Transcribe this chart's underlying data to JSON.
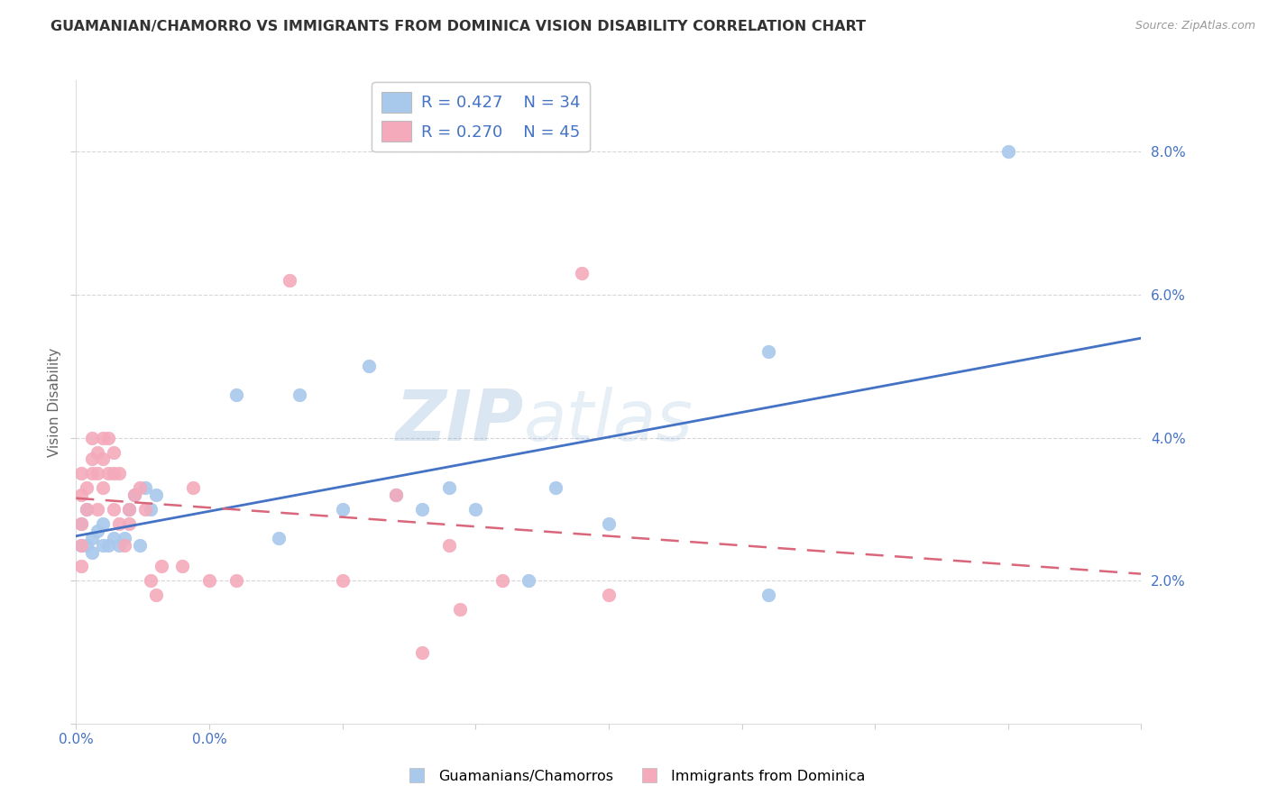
{
  "title": "GUAMANIAN/CHAMORRO VS IMMIGRANTS FROM DOMINICA VISION DISABILITY CORRELATION CHART",
  "source": "Source: ZipAtlas.com",
  "ylabel": "Vision Disability",
  "xlim": [
    0.0,
    0.2
  ],
  "ylim": [
    0.0,
    0.09
  ],
  "xticks": [
    0.0,
    0.025,
    0.05,
    0.075,
    0.1,
    0.125,
    0.15,
    0.175,
    0.2
  ],
  "xticklabels_show": {
    "0.0": "0.0%"
  },
  "yticks": [
    0.0,
    0.02,
    0.04,
    0.06,
    0.08
  ],
  "yticklabels": [
    "",
    "2.0%",
    "4.0%",
    "6.0%",
    "8.0%"
  ],
  "blue_scatter_color": "#A8C8EC",
  "pink_scatter_color": "#F4AABB",
  "blue_line_color": "#4472C4",
  "pink_line_color": "#D9667A",
  "watermark": "ZIPatlas",
  "blue_points_x": [
    0.001,
    0.001,
    0.002,
    0.002,
    0.003,
    0.003,
    0.004,
    0.005,
    0.005,
    0.006,
    0.007,
    0.008,
    0.009,
    0.01,
    0.011,
    0.012,
    0.013,
    0.014,
    0.015,
    0.03,
    0.038,
    0.042,
    0.05,
    0.055,
    0.06,
    0.065,
    0.07,
    0.075,
    0.085,
    0.09,
    0.1,
    0.13,
    0.175,
    0.13
  ],
  "blue_points_y": [
    0.028,
    0.025,
    0.03,
    0.025,
    0.026,
    0.024,
    0.027,
    0.028,
    0.025,
    0.025,
    0.026,
    0.025,
    0.026,
    0.03,
    0.032,
    0.025,
    0.033,
    0.03,
    0.032,
    0.046,
    0.026,
    0.046,
    0.03,
    0.05,
    0.032,
    0.03,
    0.033,
    0.03,
    0.02,
    0.033,
    0.028,
    0.052,
    0.08,
    0.018
  ],
  "pink_points_x": [
    0.001,
    0.001,
    0.001,
    0.001,
    0.001,
    0.002,
    0.002,
    0.003,
    0.003,
    0.003,
    0.004,
    0.004,
    0.004,
    0.005,
    0.005,
    0.005,
    0.006,
    0.006,
    0.007,
    0.007,
    0.007,
    0.008,
    0.008,
    0.009,
    0.01,
    0.01,
    0.011,
    0.012,
    0.013,
    0.014,
    0.015,
    0.016,
    0.02,
    0.022,
    0.025,
    0.03,
    0.04,
    0.05,
    0.06,
    0.065,
    0.07,
    0.072,
    0.08,
    0.095,
    0.1
  ],
  "pink_points_y": [
    0.025,
    0.022,
    0.028,
    0.032,
    0.035,
    0.03,
    0.033,
    0.035,
    0.04,
    0.037,
    0.038,
    0.035,
    0.03,
    0.04,
    0.037,
    0.033,
    0.04,
    0.035,
    0.038,
    0.035,
    0.03,
    0.035,
    0.028,
    0.025,
    0.03,
    0.028,
    0.032,
    0.033,
    0.03,
    0.02,
    0.018,
    0.022,
    0.022,
    0.033,
    0.02,
    0.02,
    0.062,
    0.02,
    0.032,
    0.01,
    0.025,
    0.016,
    0.02,
    0.063,
    0.018
  ],
  "blue_R": 0.427,
  "blue_N": 34,
  "pink_R": 0.27,
  "pink_N": 45,
  "background_color": "#FFFFFF",
  "grid_color": "#CCCCCC"
}
